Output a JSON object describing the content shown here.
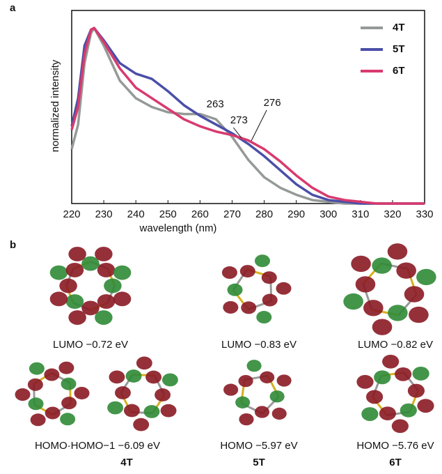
{
  "panel_labels": [
    "a",
    "b"
  ],
  "chart_data": {
    "type": "line",
    "xlabel": "wavelength (nm)",
    "ylabel": "normalized intensity",
    "x": [
      220,
      222,
      224,
      226,
      227,
      230,
      235,
      240,
      245,
      250,
      255,
      260,
      265,
      270,
      275,
      280,
      285,
      290,
      295,
      300,
      305,
      310,
      315,
      330
    ],
    "series": [
      {
        "name": "4T",
        "color": "#959a97",
        "values": [
          0.31,
          0.45,
          0.8,
          0.97,
          1.0,
          0.9,
          0.7,
          0.6,
          0.55,
          0.52,
          0.51,
          0.51,
          0.48,
          0.38,
          0.25,
          0.15,
          0.09,
          0.05,
          0.02,
          0.01,
          0,
          0,
          0,
          0
        ]
      },
      {
        "name": "5T",
        "color": "#4a4fa8",
        "values": [
          0.44,
          0.6,
          0.9,
          0.99,
          1.0,
          0.93,
          0.8,
          0.74,
          0.71,
          0.64,
          0.56,
          0.5,
          0.45,
          0.4,
          0.34,
          0.27,
          0.19,
          0.11,
          0.05,
          0.02,
          0.01,
          0,
          0,
          0
        ]
      },
      {
        "name": "6T",
        "color": "#d83a6e",
        "values": [
          0.42,
          0.55,
          0.85,
          0.99,
          1.0,
          0.92,
          0.77,
          0.66,
          0.6,
          0.54,
          0.48,
          0.44,
          0.41,
          0.39,
          0.36,
          0.31,
          0.24,
          0.16,
          0.09,
          0.04,
          0.02,
          0.01,
          0,
          0
        ]
      }
    ],
    "annotations": [
      {
        "label": "263",
        "x": 263
      },
      {
        "label": "273",
        "x": 273
      },
      {
        "label": "276",
        "x": 276
      }
    ],
    "xlim": [
      220,
      330
    ],
    "xticks": [
      220,
      230,
      240,
      250,
      260,
      270,
      280,
      290,
      300,
      310,
      320,
      330
    ],
    "ylim": [
      0,
      1.1
    ],
    "legend": "upper right",
    "grid": false
  },
  "orbitals": [
    {
      "caption": "LUMO  −0.72 eV"
    },
    {
      "caption": "LUMO  −0.83 eV"
    },
    {
      "caption": "LUMO  −0.82 eV"
    },
    {
      "caption": "HOMO·HOMO−1  −6.09 eV"
    },
    {
      "caption": "HOMO  −5.97 eV"
    },
    {
      "caption": "HOMO  −5.76 eV"
    }
  ],
  "molecules": [
    "4T",
    "5T",
    "6T"
  ]
}
